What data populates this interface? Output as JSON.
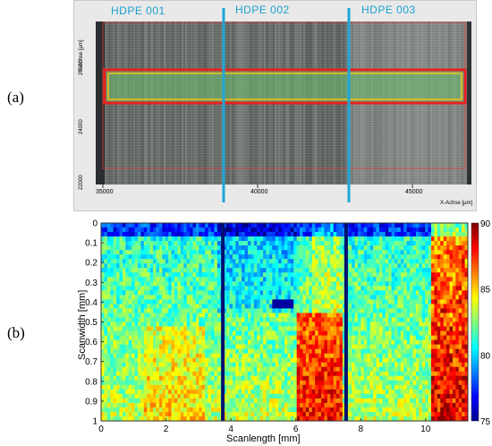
{
  "panel_a": {
    "label": "(a)",
    "segments": [
      "HDPE 001",
      "HDPE 002",
      "HDPE 003"
    ],
    "y_axis_title": "Y-Achse [µm]",
    "x_axis_title": "X-Achse [µm]",
    "x_ticks": [
      "35000",
      "40000",
      "45000"
    ],
    "y_ticks": [
      "26000",
      "24000",
      "22000"
    ],
    "colors": {
      "segment_line": "#1ea6d8",
      "roi_outer": "#e6211f",
      "roi_fill": "#69b36d",
      "roi_inner": "#f2c419"
    }
  },
  "panel_b": {
    "label": "(b)",
    "x_ticks": [
      "0",
      "2",
      "4",
      "6",
      "8",
      "10"
    ],
    "y_ticks": [
      "0",
      "0.1",
      "0.2",
      "0.3",
      "0.4",
      "0.5",
      "0.6",
      "0.7",
      "0.8",
      "0.9",
      "1"
    ],
    "colorbar_ticks": [
      "90",
      "85",
      "80",
      "75"
    ]
  },
  "chart_data": {
    "type": "heatmap",
    "xlabel": "Scanlength [mm]",
    "ylabel": "Scanwidth [mm]",
    "xlim": [
      0,
      11.3
    ],
    "ylim": [
      0,
      1
    ],
    "clim": [
      75,
      90
    ],
    "colormap": "jet",
    "dark_lines_x": [
      3.75,
      7.55
    ],
    "spot_at": [
      5.6,
      0.4
    ]
  }
}
